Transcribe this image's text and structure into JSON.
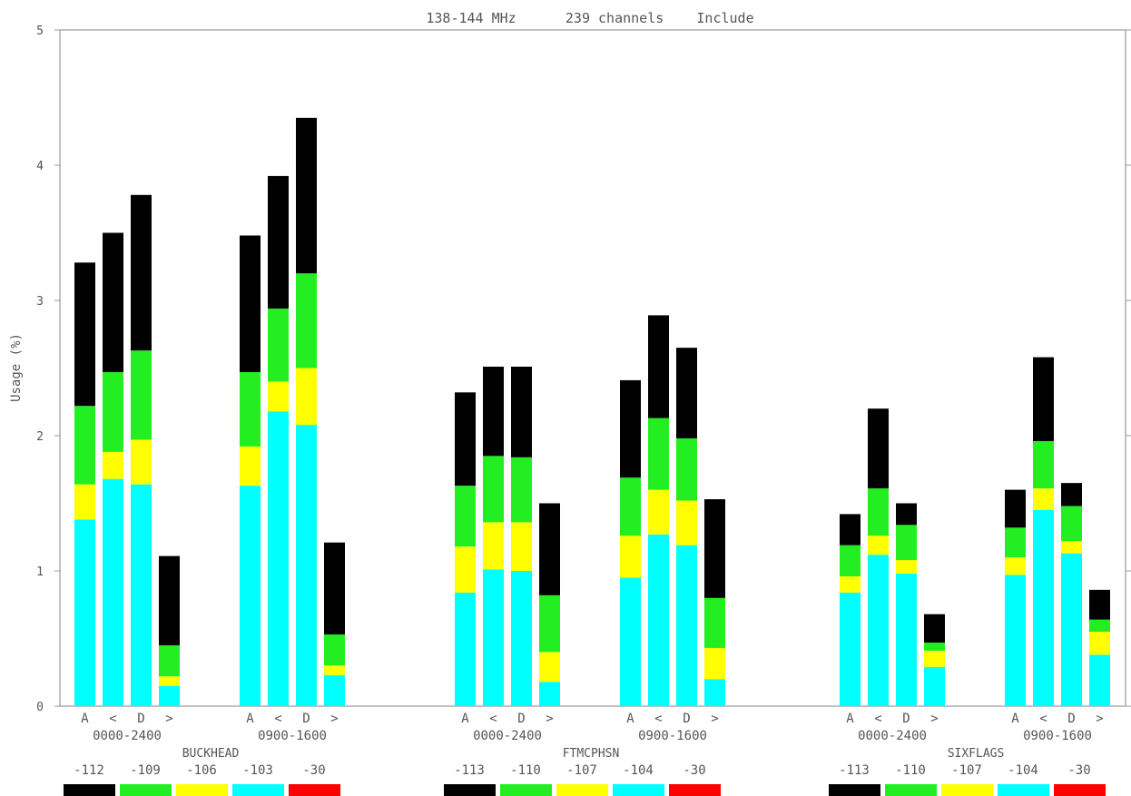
{
  "chart_data": {
    "type": "bar",
    "stacked": true,
    "title": "138-144 MHz      239 channels    Include",
    "ylabel": "Usage (%)",
    "ylim": [
      0,
      5
    ],
    "yticks": [
      "0",
      "1",
      "2",
      "3",
      "4",
      "5"
    ],
    "grid": false,
    "legend_position": "bottom",
    "bar_letters": [
      "A",
      "<",
      "D",
      ">"
    ],
    "series": [
      {
        "name": "-113",
        "color": "#000000"
      },
      {
        "name": "-110",
        "color": "#22ee22"
      },
      {
        "name": "-107",
        "color": "#ffff00"
      },
      {
        "name": "-104",
        "color": "#00ffff"
      },
      {
        "name": "-30",
        "color": "#ff0000"
      }
    ],
    "sites": [
      {
        "name": "BUCKHEAD",
        "levels": [
          "-112",
          "-109",
          "-106",
          "-103",
          "-30"
        ],
        "groups": [
          {
            "label": "0000-2400",
            "bars": [
              [
                1.38,
                1.64,
                2.22,
                3.28
              ],
              [
                1.68,
                1.88,
                2.47,
                3.5
              ],
              [
                1.64,
                1.97,
                2.63,
                3.78
              ],
              [
                0.15,
                0.22,
                0.45,
                1.11
              ]
            ]
          },
          {
            "label": "0900-1600",
            "bars": [
              [
                1.63,
                1.92,
                2.47,
                3.48
              ],
              [
                2.18,
                2.4,
                2.94,
                3.92
              ],
              [
                2.08,
                2.5,
                3.2,
                4.35
              ],
              [
                0.23,
                0.3,
                0.53,
                1.21
              ]
            ]
          }
        ]
      },
      {
        "name": "FTMCPHSN",
        "levels": [
          "-113",
          "-110",
          "-107",
          "-104",
          "-30"
        ],
        "groups": [
          {
            "label": "0000-2400",
            "bars": [
              [
                0.84,
                1.18,
                1.63,
                2.32
              ],
              [
                1.01,
                1.36,
                1.85,
                2.51
              ],
              [
                1.0,
                1.36,
                1.84,
                2.51
              ],
              [
                0.18,
                0.4,
                0.82,
                1.5
              ]
            ]
          },
          {
            "label": "0900-1600",
            "bars": [
              [
                0.95,
                1.26,
                1.69,
                2.41
              ],
              [
                1.27,
                1.6,
                2.13,
                2.89
              ],
              [
                1.19,
                1.52,
                1.98,
                2.65
              ],
              [
                0.2,
                0.43,
                0.8,
                1.53
              ]
            ]
          }
        ]
      },
      {
        "name": "SIXFLAGS",
        "levels": [
          "-113",
          "-110",
          "-107",
          "-104",
          "-30"
        ],
        "groups": [
          {
            "label": "0000-2400",
            "bars": [
              [
                0.84,
                0.96,
                1.19,
                1.42
              ],
              [
                1.12,
                1.26,
                1.61,
                2.2
              ],
              [
                0.98,
                1.08,
                1.34,
                1.5
              ],
              [
                0.29,
                0.41,
                0.47,
                0.68
              ]
            ]
          },
          {
            "label": "0900-1600",
            "bars": [
              [
                0.97,
                1.1,
                1.32,
                1.6
              ],
              [
                1.45,
                1.61,
                1.96,
                2.58
              ],
              [
                1.13,
                1.22,
                1.48,
                1.65
              ],
              [
                0.38,
                0.55,
                0.64,
                0.86
              ]
            ]
          }
        ]
      }
    ]
  }
}
